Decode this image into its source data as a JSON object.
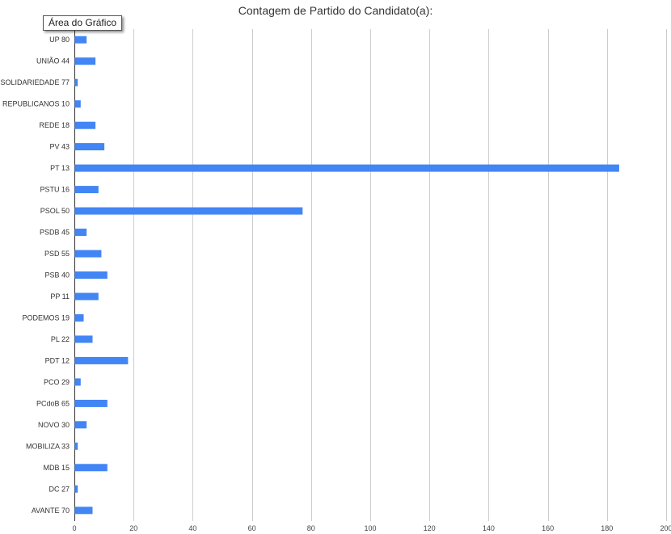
{
  "tooltip": {
    "text": "Área do Gráfico"
  },
  "chart_data": {
    "type": "bar",
    "orientation": "horizontal",
    "title": "Contagem de Partido do Candidato(a):",
    "xlabel": "",
    "ylabel": "",
    "xlim": [
      0,
      200
    ],
    "x_ticks": [
      0,
      20,
      40,
      60,
      80,
      100,
      120,
      140,
      160,
      180,
      200
    ],
    "grid": true,
    "bar_color": "#4285f4",
    "gridline_color": "#cccccc",
    "categories": [
      "UP 80",
      "UNIÃO 44",
      "SOLIDARIEDADE 77",
      "REPUBLICANOS 10",
      "REDE 18",
      "PV 43",
      "PT 13",
      "PSTU 16",
      "PSOL 50",
      "PSDB 45",
      "PSD 55",
      "PSB 40",
      "PP 11",
      "PODEMOS 19",
      "PL 22",
      "PDT 12",
      "PCO 29",
      "PCdoB 65",
      "NOVO 30",
      "MOBILIZA 33",
      "MDB 15",
      "DC 27",
      "AVANTE 70"
    ],
    "values": [
      4,
      7,
      1,
      2,
      7,
      10,
      184,
      8,
      77,
      4,
      9,
      11,
      8,
      3,
      6,
      18,
      2,
      11,
      4,
      1,
      11,
      1,
      6
    ]
  }
}
